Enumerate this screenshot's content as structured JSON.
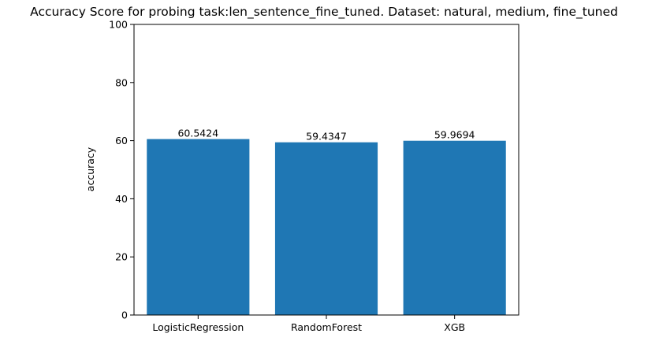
{
  "chart_data": {
    "type": "bar",
    "title": "Accuracy Score for probing task:len_sentence_fine_tuned. Dataset: natural, medium, fine_tuned",
    "xlabel": "",
    "ylabel": "accuracy",
    "categories": [
      "LogisticRegression",
      "RandomForest",
      "XGB"
    ],
    "values": [
      60.5424,
      59.4347,
      59.9694
    ],
    "value_labels": [
      "60.5424",
      "59.4347",
      "59.9694"
    ],
    "ylim": [
      0,
      100
    ],
    "yticks": [
      0,
      20,
      40,
      60,
      80,
      100
    ],
    "ytick_labels": [
      "0",
      "20",
      "40",
      "60",
      "80",
      "100"
    ],
    "bar_color": "#1f77b4",
    "grid": false,
    "legend": "none"
  }
}
